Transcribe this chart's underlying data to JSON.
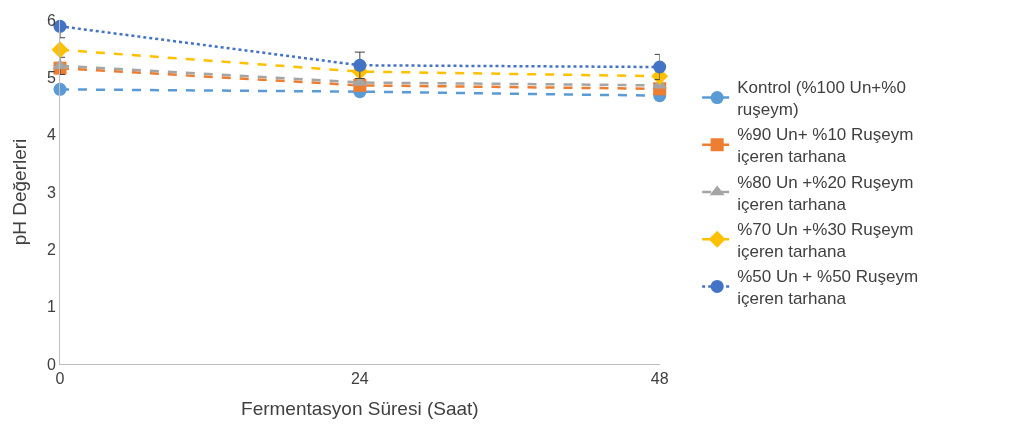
{
  "chart_data": {
    "type": "line",
    "xlabel": "Fermentasyon Süresi (Saat)",
    "ylabel": "pH Değerleri",
    "x": [
      0,
      24,
      48
    ],
    "xlim": [
      0,
      48
    ],
    "xticks": [
      0,
      24,
      48
    ],
    "ylim": [
      0,
      6
    ],
    "yticks": [
      0,
      1,
      2,
      3,
      4,
      5,
      6
    ],
    "legend": "right",
    "series": [
      {
        "name": "Kontrol (%100 Un+%0 ruşeym)",
        "color": "#5b9bd5",
        "marker": "circle",
        "line_style": "dashed",
        "values": [
          4.79,
          4.75,
          4.68
        ]
      },
      {
        "name": "%90 Un+ %10 Ruşeym içeren tarhana",
        "color": "#ed7d31",
        "marker": "square",
        "line_style": "dashed",
        "values": [
          5.16,
          4.86,
          4.8
        ]
      },
      {
        "name": "%80 Un +%20 Ruşeym içeren tarhana",
        "color": "#a5a5a5",
        "marker": "triangle",
        "line_style": "dashed",
        "values": [
          5.2,
          4.91,
          4.86
        ],
        "errors": [
          0.15,
          null,
          null
        ]
      },
      {
        "name": "%70 Un +%30 Ruşeym içeren tarhana",
        "color": "#ffc000",
        "marker": "diamond",
        "line_style": "dashed",
        "values": [
          5.48,
          5.1,
          5.02
        ]
      },
      {
        "name": "%50 Un + %50 Ruşeym içeren tarhana",
        "color": "#4472c4",
        "marker": "circle",
        "line_style": "dotted",
        "values": [
          5.89,
          5.21,
          5.18
        ],
        "errors": [
          0.2,
          0.23,
          0.22
        ]
      }
    ]
  }
}
